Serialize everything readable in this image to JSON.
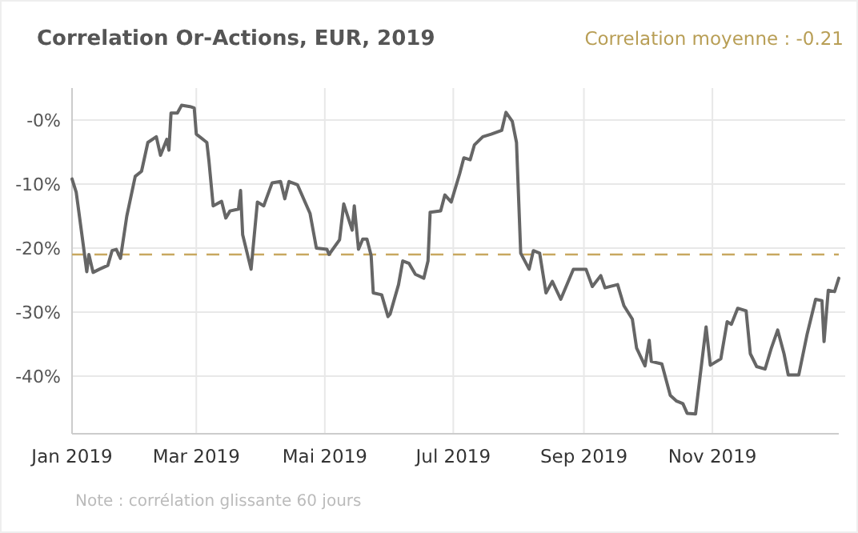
{
  "chart_data": {
    "type": "line",
    "title": "Correlation Or-Actions, EUR, 2019",
    "subtitle": "Correlation moyenne : -0.21",
    "annotations": [
      "Note : corrélation glissante 60 jours"
    ],
    "x": [
      "2019-01-01",
      "2019-01-03",
      "2019-01-06",
      "2019-01-08",
      "2019-01-09",
      "2019-01-11",
      "2019-01-14",
      "2019-01-18",
      "2019-01-20",
      "2019-01-22",
      "2019-01-24",
      "2019-01-27",
      "2019-01-31",
      "2019-02-03",
      "2019-02-06",
      "2019-02-10",
      "2019-02-12",
      "2019-02-15",
      "2019-02-16",
      "2019-02-17",
      "2019-02-20",
      "2019-02-22",
      "2019-02-26",
      "2019-02-28",
      "2019-03-01",
      "2019-03-06",
      "2019-03-07",
      "2019-03-09",
      "2019-03-13",
      "2019-03-15",
      "2019-03-17",
      "2019-03-21",
      "2019-03-22",
      "2019-03-23",
      "2019-03-27",
      "2019-03-30",
      "2019-04-02",
      "2019-04-06",
      "2019-04-10",
      "2019-04-12",
      "2019-04-14",
      "2019-04-18",
      "2019-04-24",
      "2019-04-27",
      "2019-05-02",
      "2019-05-03",
      "2019-05-08",
      "2019-05-10",
      "2019-05-14",
      "2019-05-15",
      "2019-05-17",
      "2019-05-19",
      "2019-05-21",
      "2019-05-23",
      "2019-05-24",
      "2019-05-28",
      "2019-05-31",
      "2019-06-01",
      "2019-06-05",
      "2019-06-07",
      "2019-06-10",
      "2019-06-13",
      "2019-06-17",
      "2019-06-19",
      "2019-06-20",
      "2019-06-25",
      "2019-06-27",
      "2019-06-30",
      "2019-07-04",
      "2019-07-06",
      "2019-07-09",
      "2019-07-11",
      "2019-07-15",
      "2019-07-19",
      "2019-07-24",
      "2019-07-26",
      "2019-07-29",
      "2019-07-31",
      "2019-08-02",
      "2019-08-06",
      "2019-08-08",
      "2019-08-11",
      "2019-08-14",
      "2019-08-17",
      "2019-08-21",
      "2019-08-27",
      "2019-09-02",
      "2019-09-05",
      "2019-09-09",
      "2019-09-11",
      "2019-09-17",
      "2019-09-20",
      "2019-09-24",
      "2019-09-26",
      "2019-09-30",
      "2019-10-02",
      "2019-10-03",
      "2019-10-08",
      "2019-10-12",
      "2019-10-15",
      "2019-10-18",
      "2019-10-20",
      "2019-10-24",
      "2019-10-29",
      "2019-10-31",
      "2019-11-05",
      "2019-11-08",
      "2019-11-10",
      "2019-11-13",
      "2019-11-17",
      "2019-11-19",
      "2019-11-22",
      "2019-11-26",
      "2019-11-29",
      "2019-12-02",
      "2019-12-05",
      "2019-12-07",
      "2019-12-12",
      "2019-12-16",
      "2019-12-20",
      "2019-12-23",
      "2019-12-24",
      "2019-12-26",
      "2019-12-29",
      "2019-12-31"
    ],
    "series": [
      {
        "color": "#666666",
        "values": [
          -9.2,
          -11.3,
          -18.7,
          -23.7,
          -21,
          -23.8,
          -23.3,
          -22.7,
          -20.4,
          -20.2,
          -21.6,
          -15,
          -8.8,
          -8,
          -3.5,
          -2.6,
          -5.5,
          -3,
          -4.7,
          1.1,
          1.1,
          2.3,
          2.1,
          1.9,
          -2.2,
          -3.5,
          -6.4,
          -13.4,
          -12.7,
          -15.3,
          -14.2,
          -13.9,
          -11,
          -17.9,
          -23.3,
          -12.8,
          -13.4,
          -9.8,
          -9.6,
          -12.3,
          -9.6,
          -10.1,
          -14.6,
          -20,
          -20.2,
          -21,
          -18.7,
          -13.1,
          -17.2,
          -13.4,
          -20.2,
          -18.6,
          -18.6,
          -21.2,
          -27,
          -27.3,
          -30.7,
          -30.3,
          -25.7,
          -22,
          -22.4,
          -24.1,
          -24.7,
          -22,
          -14.4,
          -14.2,
          -11.7,
          -12.8,
          -8.4,
          -5.9,
          -6.2,
          -3.9,
          -2.6,
          -2.2,
          -1.6,
          1.2,
          -0.2,
          -3.5,
          -20.8,
          -23.3,
          -20.4,
          -20.8,
          -27,
          -25.2,
          -28,
          -23.3,
          -23.3,
          -26,
          -24.3,
          -26.2,
          -25.7,
          -29,
          -31.1,
          -35.6,
          -38.4,
          -34.4,
          -37.7,
          -38.1,
          -43,
          -43.9,
          -44.3,
          -45.8,
          -45.9,
          -32.3,
          -38.3,
          -37.3,
          -31.5,
          -31.9,
          -29.4,
          -29.8,
          -36.5,
          -38.5,
          -38.9,
          -35.6,
          -32.8,
          -36.5,
          -39.8,
          -39.8,
          -33.4,
          -28,
          -28.2,
          -34.6,
          -26.6,
          -26.8,
          -24.7
        ]
      }
    ],
    "xlim": [
      "2019-01-01",
      "2019-12-31"
    ],
    "xticks": [
      {
        "value": "2019-01-01",
        "label": "Jan 2019"
      },
      {
        "value": "2019-03-01",
        "label": "Mar 2019"
      },
      {
        "value": "2019-05-01",
        "label": "Mai 2019"
      },
      {
        "value": "2019-07-01",
        "label": "Jul 2019"
      },
      {
        "value": "2019-09-01",
        "label": "Sep 2019"
      },
      {
        "value": "2019-11-01",
        "label": "Nov 2019"
      }
    ],
    "ylim": [
      -49,
      5
    ],
    "yticks": [
      {
        "value": -40,
        "label": "-40%"
      },
      {
        "value": -30,
        "label": "-30%"
      },
      {
        "value": -20,
        "label": "-20%"
      },
      {
        "value": -10,
        "label": "-10%"
      },
      {
        "value": 0,
        "label": "-0%"
      }
    ],
    "ref_lines": [
      {
        "axis": "y",
        "value": -21,
        "color": "#c8a860",
        "line_style": "dashed"
      }
    ],
    "grid": true,
    "marker": "none",
    "line_style": "solid"
  }
}
